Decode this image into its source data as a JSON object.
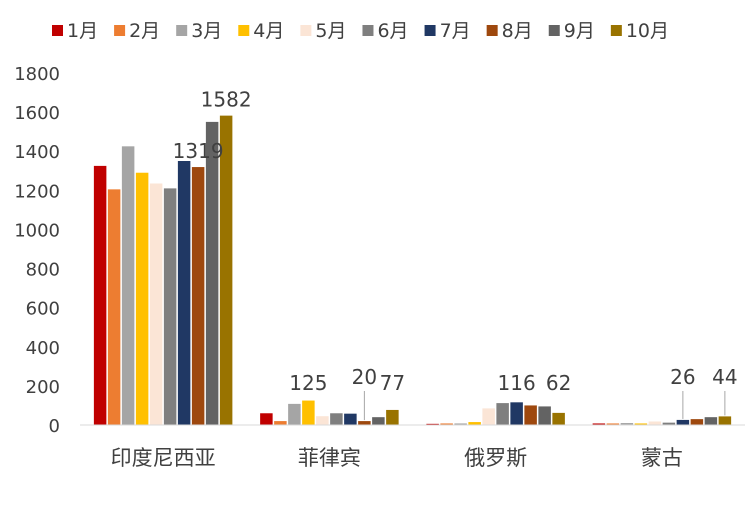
{
  "chart_data": {
    "type": "bar",
    "categories": [
      "印度尼西亚",
      "菲律宾",
      "俄罗斯",
      "蒙古"
    ],
    "series": [
      {
        "name": "1月",
        "color": "#C00000",
        "values": [
          1325,
          60,
          6,
          8
        ]
      },
      {
        "name": "2月",
        "color": "#ED7D31",
        "values": [
          1205,
          20,
          8,
          8
        ]
      },
      {
        "name": "3月",
        "color": "#A5A5A5",
        "values": [
          1425,
          108,
          8,
          10
        ]
      },
      {
        "name": "4月",
        "color": "#FFC000",
        "values": [
          1290,
          125,
          15,
          8
        ]
      },
      {
        "name": "5月",
        "color": "#FBE5D6",
        "values": [
          1235,
          45,
          85,
          18
        ]
      },
      {
        "name": "6月",
        "color": "#7F7F7F",
        "values": [
          1210,
          60,
          112,
          12
        ]
      },
      {
        "name": "7月",
        "color": "#203864",
        "values": [
          1350,
          58,
          116,
          26
        ]
      },
      {
        "name": "8月",
        "color": "#9E480E",
        "values": [
          1319,
          20,
          100,
          30
        ]
      },
      {
        "name": "9月",
        "color": "#636363",
        "values": [
          1550,
          40,
          95,
          40
        ]
      },
      {
        "name": "10月",
        "color": "#997300",
        "values": [
          1582,
          77,
          62,
          44
        ]
      }
    ],
    "ylim": [
      0,
      1800
    ],
    "yticks": [
      0,
      200,
      400,
      600,
      800,
      1000,
      1200,
      1400,
      1600,
      1800
    ],
    "legend_position": "top",
    "grid": false,
    "data_labels": [
      {
        "category": 0,
        "series": 7,
        "text": "1319"
      },
      {
        "category": 0,
        "series": 9,
        "text": "1582"
      },
      {
        "category": 1,
        "series": 3,
        "text": "125"
      },
      {
        "category": 1,
        "series": 7,
        "text": "20"
      },
      {
        "category": 1,
        "series": 9,
        "text": "77"
      },
      {
        "category": 2,
        "series": 6,
        "text": "116"
      },
      {
        "category": 2,
        "series": 9,
        "text": "62"
      },
      {
        "category": 3,
        "series": 6,
        "text": "26"
      },
      {
        "category": 3,
        "series": 9,
        "text": "44"
      }
    ]
  }
}
